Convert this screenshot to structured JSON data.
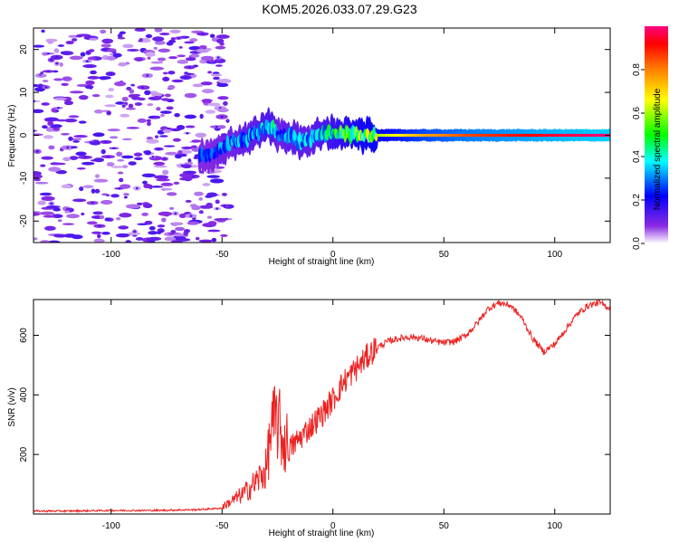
{
  "title": "KOM5.2026.033.07.29.G23",
  "colors": {
    "snr_line": "#ee2222",
    "frame": "#000000",
    "colorbar": [
      "#ffffff",
      "#8a2be2",
      "#0000ff",
      "#00ffff",
      "#00ff00",
      "#ffff00",
      "#ff8000",
      "#ff0000",
      "#ff007f"
    ]
  },
  "chart_data": [
    {
      "type": "heatmap",
      "name": "spectrogram",
      "title": "KOM5.2026.033.07.29.G23",
      "xlabel": "Height of straight line (km)",
      "ylabel": "Frequency (Hz)",
      "xlim": [
        -135,
        125
      ],
      "ylim": [
        -25,
        25
      ],
      "xticks": [
        -100,
        -50,
        0,
        50,
        100
      ],
      "yticks": [
        -20,
        -10,
        0,
        10,
        20
      ],
      "colorbar": {
        "label": "Normalized spectral amplitude",
        "range": [
          0,
          1
        ],
        "ticks": [
          "0.0",
          "0.2",
          "0.4",
          "0.6",
          "0.8"
        ]
      },
      "ridge": {
        "x": [
          -60,
          -55,
          -50,
          -45,
          -40,
          -35,
          -30,
          -27,
          -25,
          -20,
          -15,
          -10,
          -5,
          0,
          5,
          10,
          20,
          40,
          60,
          80,
          100,
          125
        ],
        "y": [
          -5,
          -4.5,
          -3,
          -1.5,
          -1,
          0.5,
          2,
          2,
          0,
          0,
          -1.5,
          -1,
          0.5,
          0.5,
          0.5,
          0,
          0,
          0,
          0,
          0,
          0,
          0
        ],
        "amplitude": [
          0.25,
          0.25,
          0.3,
          0.3,
          0.35,
          0.35,
          0.4,
          0.4,
          0.3,
          0.35,
          0.35,
          0.35,
          0.4,
          0.45,
          0.5,
          0.55,
          0.6,
          0.75,
          0.85,
          0.9,
          0.95,
          1.0
        ]
      },
      "noise_region_x": [
        -135,
        -55
      ]
    },
    {
      "type": "line",
      "name": "snr",
      "xlabel": "Height of straight line (km)",
      "ylabel": "SNR (v/v)",
      "xlim": [
        -135,
        125
      ],
      "ylim": [
        0,
        720
      ],
      "xticks": [
        -100,
        -50,
        0,
        50,
        100
      ],
      "yticks": [
        200,
        400,
        600
      ],
      "series": [
        {
          "name": "SNR",
          "x": [
            -135,
            -120,
            -100,
            -80,
            -60,
            -50,
            -45,
            -40,
            -35,
            -30,
            -28,
            -25,
            -22,
            -20,
            -15,
            -10,
            -5,
            0,
            5,
            10,
            15,
            20,
            25,
            30,
            35,
            40,
            45,
            50,
            55,
            60,
            65,
            70,
            75,
            80,
            85,
            90,
            95,
            100,
            105,
            110,
            115,
            120,
            125
          ],
          "y": [
            10,
            10,
            12,
            12,
            15,
            20,
            40,
            60,
            90,
            130,
            240,
            270,
            200,
            210,
            250,
            290,
            330,
            380,
            440,
            480,
            520,
            560,
            580,
            590,
            595,
            590,
            580,
            575,
            580,
            600,
            640,
            690,
            710,
            700,
            660,
            590,
            545,
            570,
            620,
            670,
            700,
            710,
            690
          ]
        }
      ]
    }
  ]
}
